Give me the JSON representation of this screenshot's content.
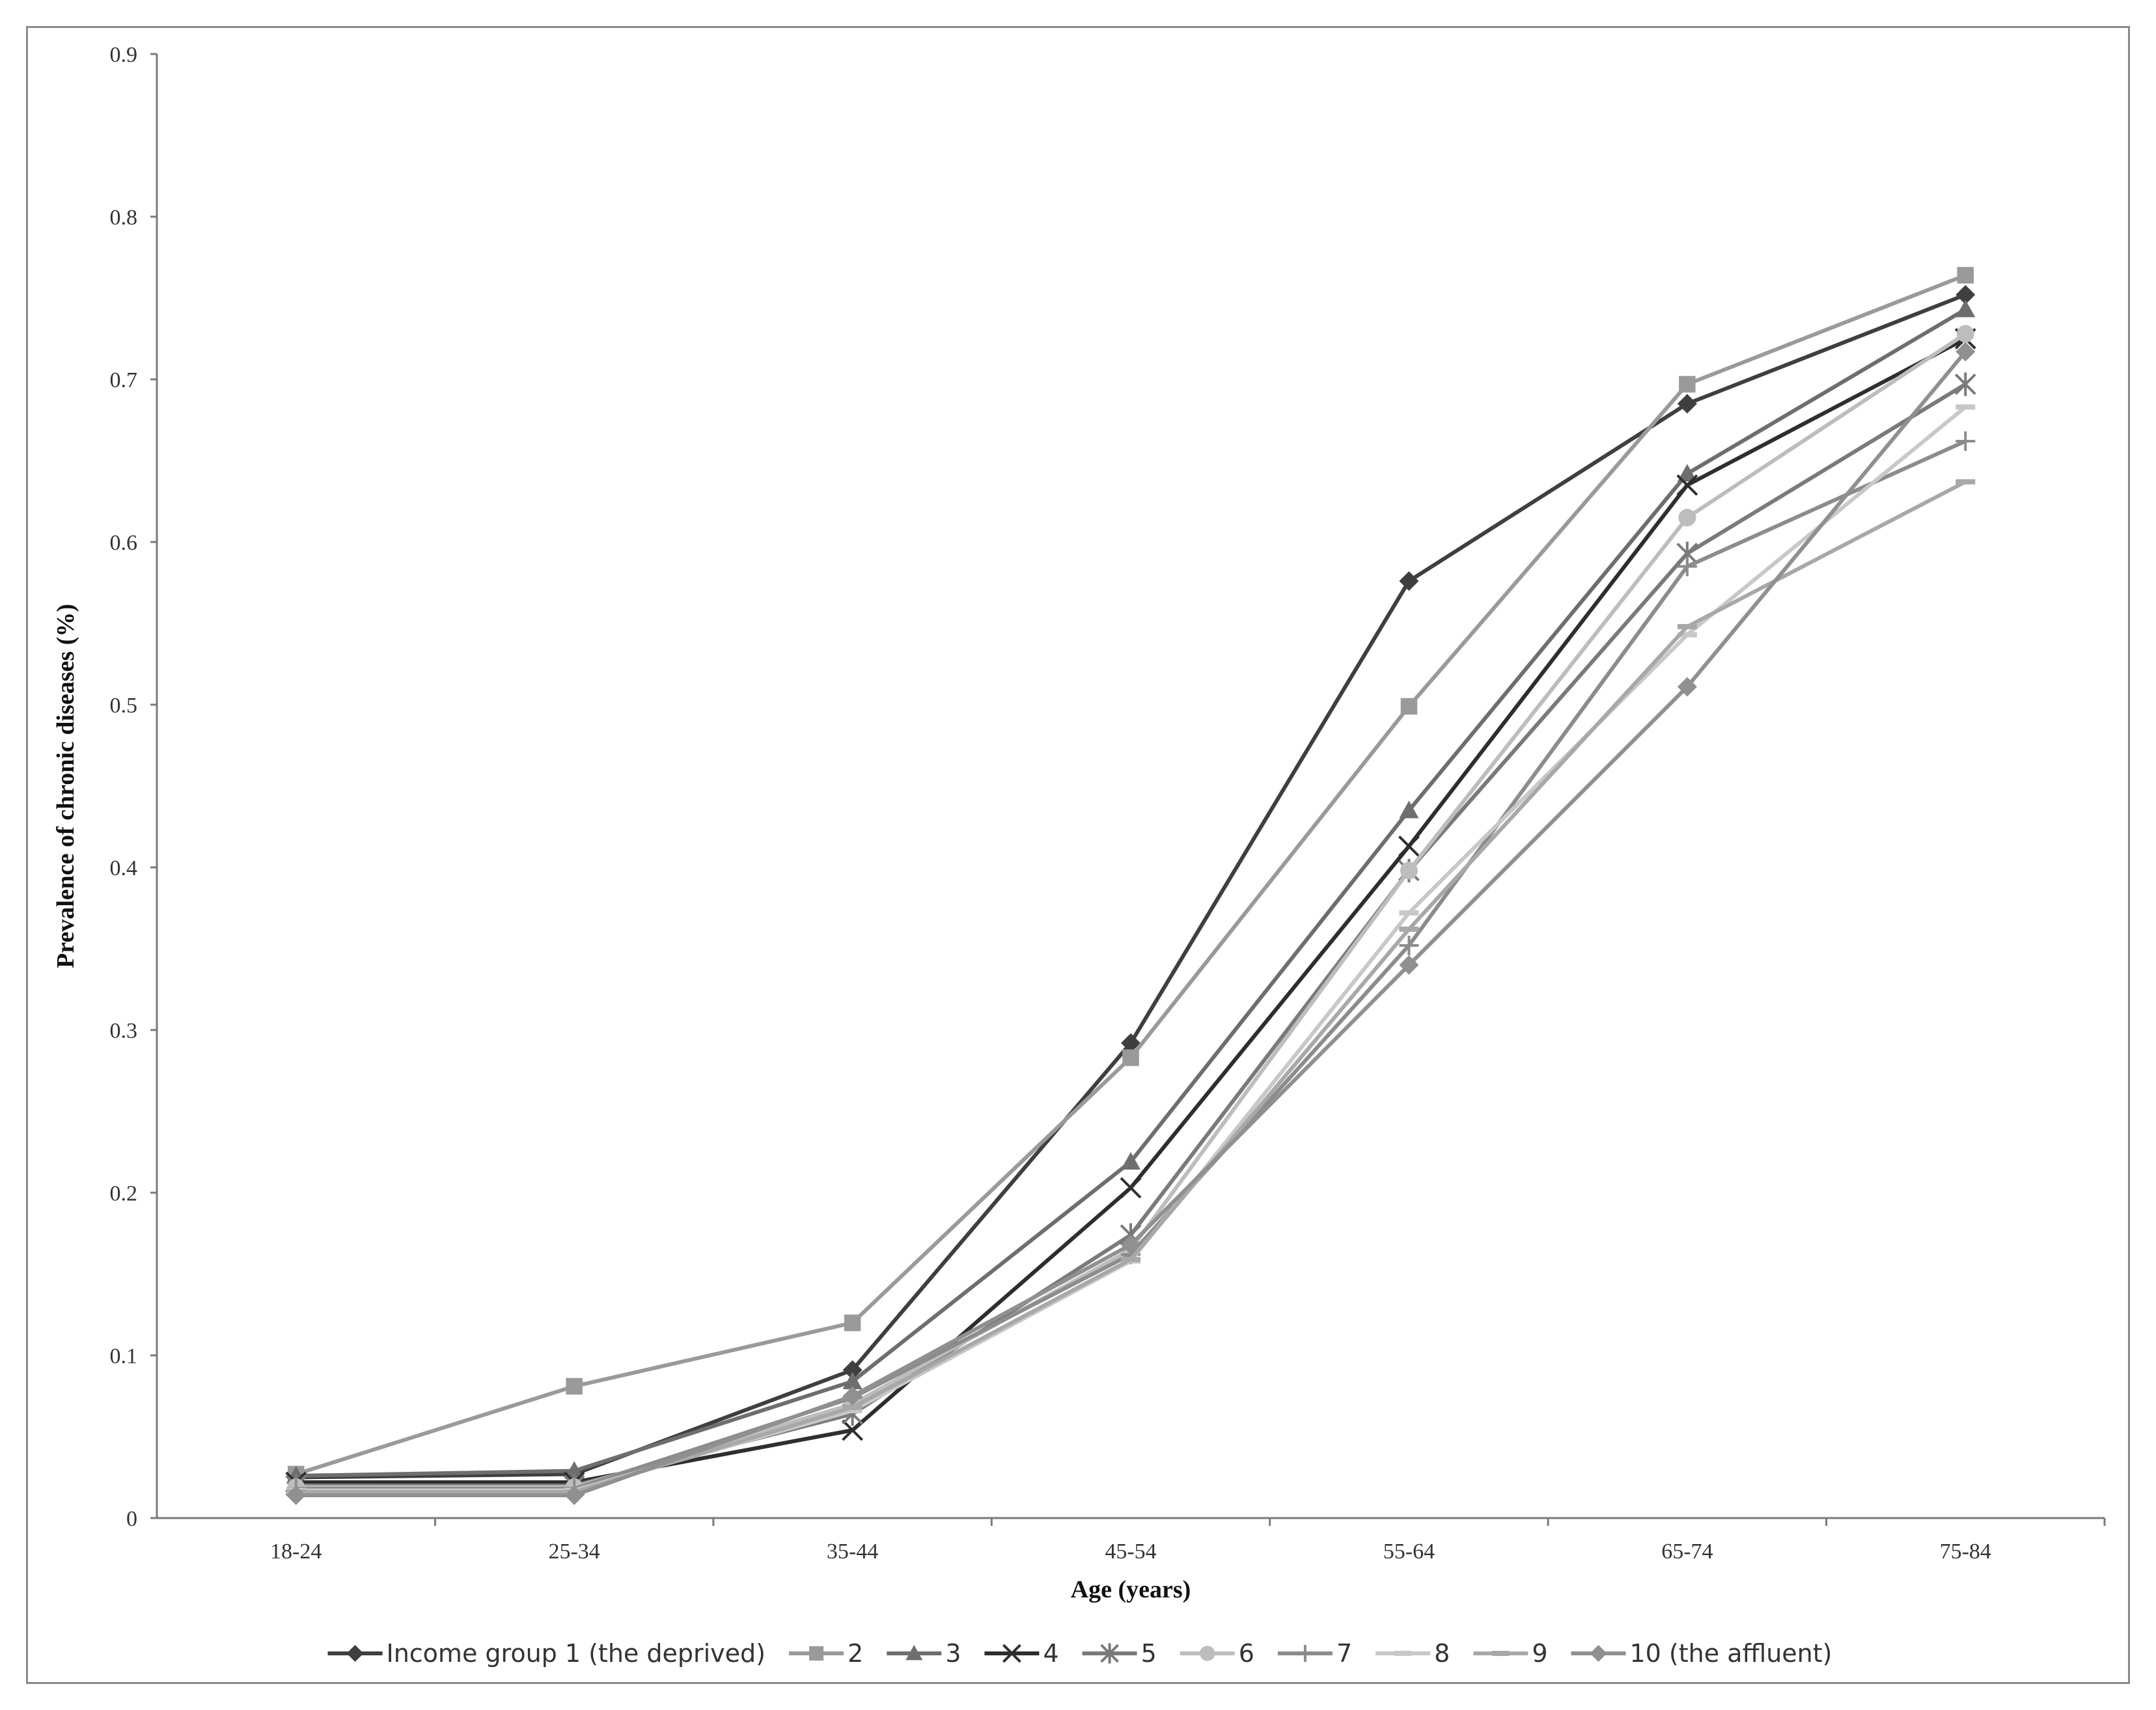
{
  "chart_data": {
    "type": "line",
    "title": "",
    "xlabel": "Age (years)",
    "ylabel": "Prevalence of chronic diseases (%)",
    "categories": [
      "18-24",
      "25-34",
      "35-44",
      "45-54",
      "55-64",
      "65-74",
      "75-84"
    ],
    "ylim": [
      0,
      0.9
    ],
    "yticks": [
      "0",
      "0.1",
      "0.2",
      "0.3",
      "0.4",
      "0.5",
      "0.6",
      "0.7",
      "0.8",
      "0.9"
    ],
    "grid": false,
    "legend_position": "bottom",
    "series": [
      {
        "name": "Income group 1 (the deprived)",
        "marker": "diamond",
        "color": "#3f3f3f",
        "values": [
          0.025,
          0.027,
          0.091,
          0.292,
          0.576,
          0.685,
          0.752
        ]
      },
      {
        "name": "2",
        "marker": "square",
        "color": "#9a9a9a",
        "values": [
          0.027,
          0.081,
          0.12,
          0.283,
          0.499,
          0.697,
          0.764
        ]
      },
      {
        "name": "3",
        "marker": "triangle",
        "color": "#6e6e6e",
        "values": [
          0.026,
          0.029,
          0.084,
          0.219,
          0.435,
          0.642,
          0.743
        ]
      },
      {
        "name": "4",
        "marker": "x",
        "color": "#2e2e2e",
        "values": [
          0.022,
          0.022,
          0.054,
          0.203,
          0.413,
          0.635,
          0.725
        ]
      },
      {
        "name": "5",
        "marker": "star",
        "color": "#7a7a7a",
        "values": [
          0.02,
          0.02,
          0.064,
          0.174,
          0.398,
          0.593,
          0.697
        ]
      },
      {
        "name": "6",
        "marker": "circle",
        "color": "#bdbdbd",
        "values": [
          0.019,
          0.019,
          0.07,
          0.165,
          0.398,
          0.615,
          0.728
        ]
      },
      {
        "name": "7",
        "marker": "plus",
        "color": "#8c8c8c",
        "values": [
          0.018,
          0.018,
          0.074,
          0.162,
          0.352,
          0.585,
          0.662
        ]
      },
      {
        "name": "8",
        "marker": "dash",
        "color": "#c8c8c8",
        "values": [
          0.017,
          0.017,
          0.066,
          0.158,
          0.372,
          0.543,
          0.683
        ]
      },
      {
        "name": "9",
        "marker": "dash",
        "color": "#a8a8a8",
        "values": [
          0.016,
          0.016,
          0.068,
          0.159,
          0.362,
          0.548,
          0.637
        ]
      },
      {
        "name": "10 (the affluent)",
        "marker": "diamond",
        "color": "#909090",
        "values": [
          0.014,
          0.014,
          0.075,
          0.168,
          0.34,
          0.511,
          0.717
        ]
      }
    ]
  }
}
